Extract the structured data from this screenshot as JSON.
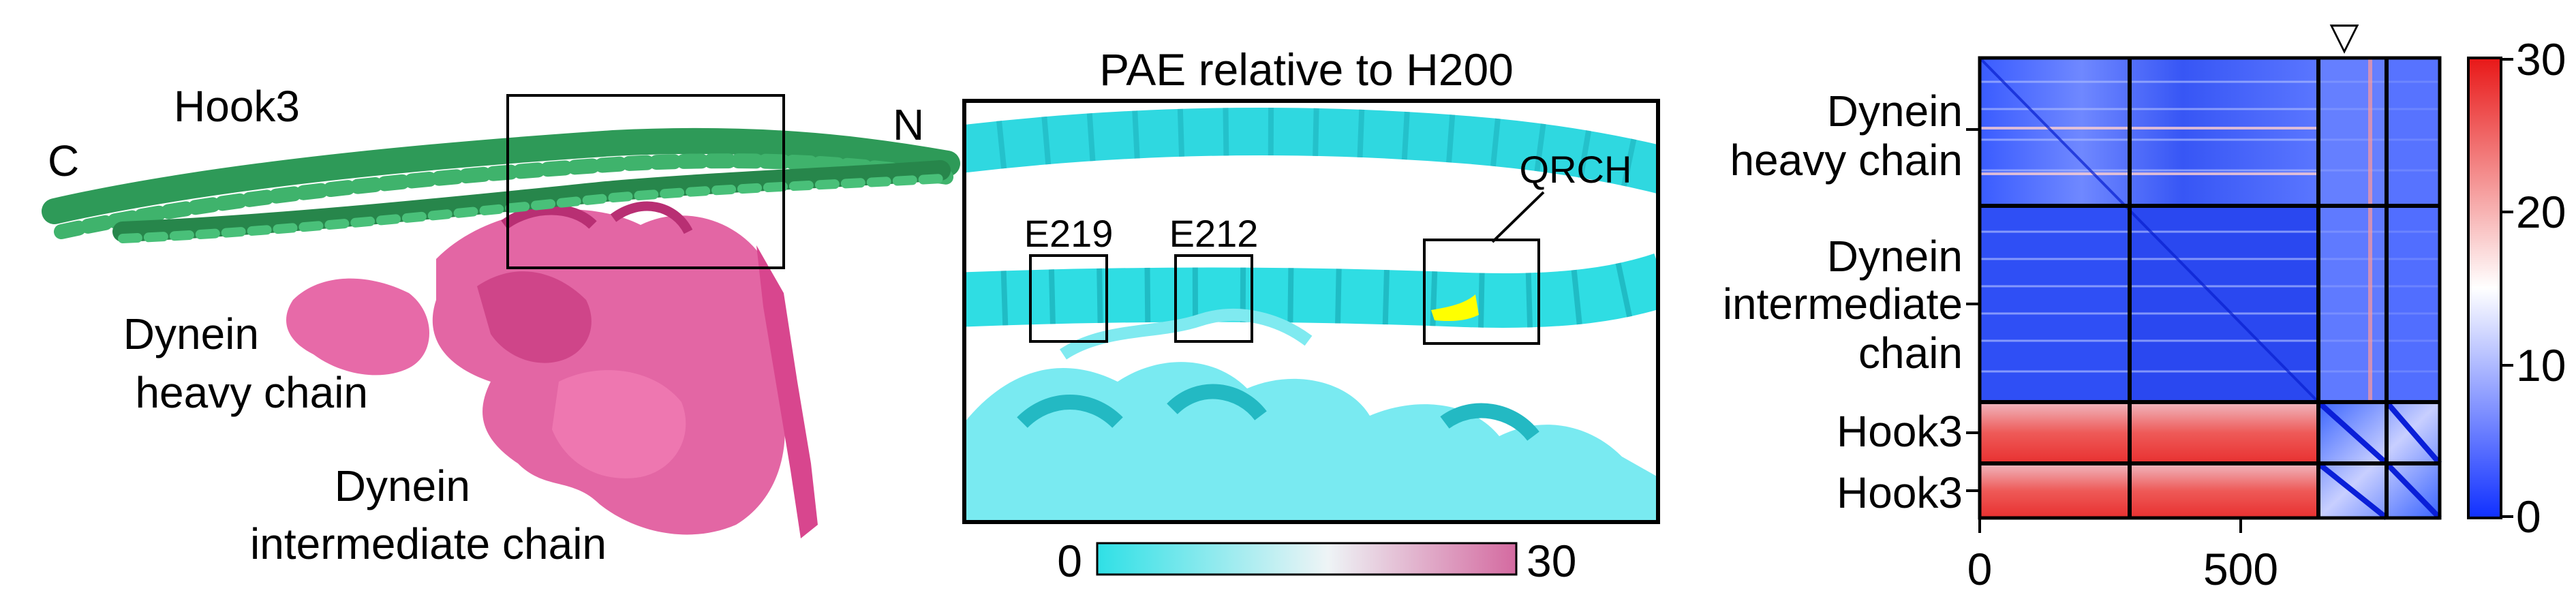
{
  "panel_structure": {
    "labels": {
      "hook3": "Hook3",
      "c_term": "C",
      "n_term": "N",
      "dhc_line1": "Dynein",
      "dhc_line2": "heavy chain",
      "dic_line1": "Dynein",
      "dic_line2": "intermediate chain"
    },
    "colors": {
      "hook3": "#2e9a58",
      "dynein": "#e0559a"
    }
  },
  "panel_pae_zoom": {
    "title": "PAE relative to H200",
    "labels": {
      "e219": "E219",
      "e212": "E212",
      "qrch": "QRCH"
    },
    "colorbar": {
      "min": "0",
      "max": "30",
      "color_low": "#2fe0e6",
      "color_high": "#d46aa0"
    },
    "highlight_color": "#ffff00"
  },
  "panel_pae_matrix": {
    "marker": "▽",
    "row_labels": {
      "dhc_line1": "Dynein",
      "dhc_line2": "heavy chain",
      "dic_line1": "Dynein",
      "dic_line2": "intermediate",
      "dic_line3": "chain",
      "hook3_a": "Hook3",
      "hook3_b": "Hook3"
    },
    "x_ticks": [
      "0",
      "500"
    ],
    "colorbar": {
      "ticks": [
        "30",
        "20",
        "10",
        "0"
      ],
      "color_low": "#1030ff",
      "color_mid": "#ffffff",
      "color_high": "#e81818"
    }
  }
}
